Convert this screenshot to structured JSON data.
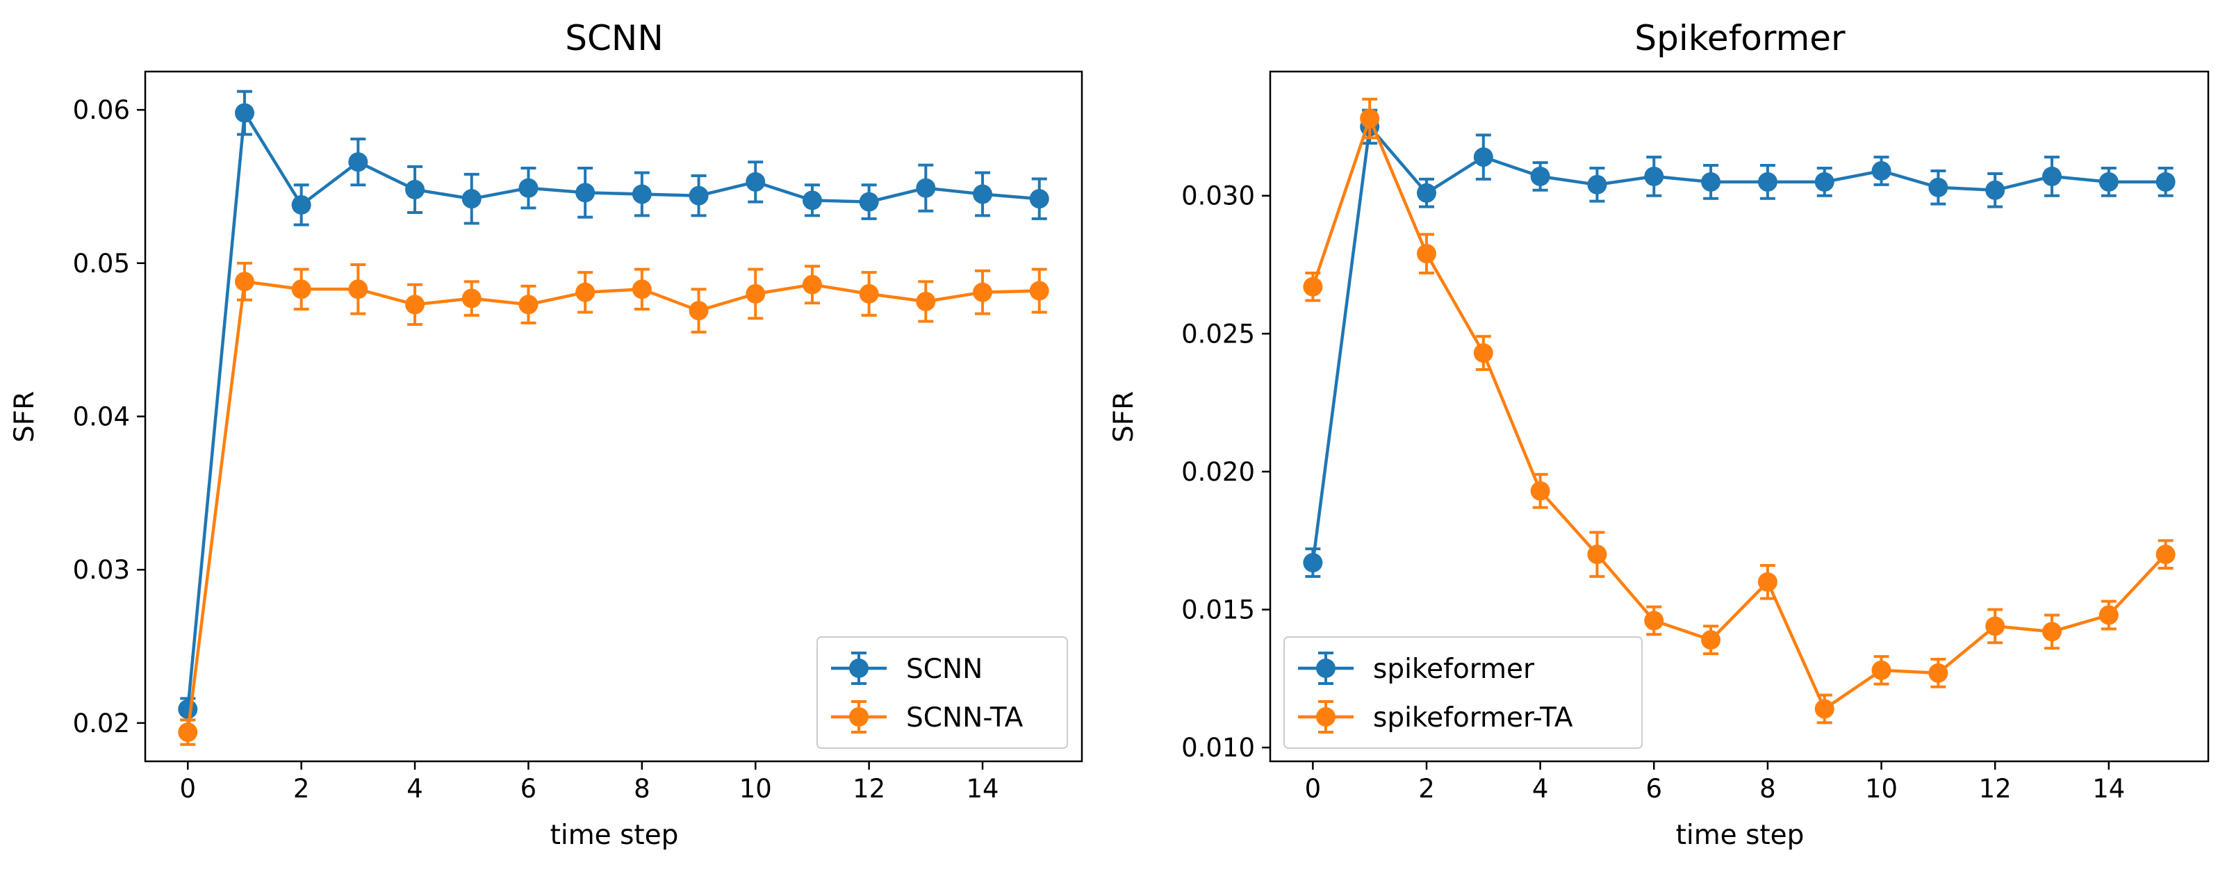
{
  "colors": {
    "blue": "#1f77b4",
    "orange": "#ff7f0e",
    "axis": "#000000",
    "legend_border": "#cccccc"
  },
  "chart_data": [
    {
      "type": "line",
      "title": "SCNN",
      "xlabel": "time step",
      "ylabel": "SFR",
      "xlim": [
        -0.75,
        15.75
      ],
      "ylim": [
        0.0175,
        0.0625
      ],
      "xticks": [
        0,
        2,
        4,
        6,
        8,
        10,
        12,
        14
      ],
      "xtick_labels": [
        "0",
        "2",
        "4",
        "6",
        "8",
        "10",
        "12",
        "14"
      ],
      "yticks": [
        0.02,
        0.03,
        0.04,
        0.05,
        0.06
      ],
      "ytick_labels": [
        "0.02",
        "0.03",
        "0.04",
        "0.05",
        "0.06"
      ],
      "legend_position": "lower-right",
      "x": [
        0,
        1,
        2,
        3,
        4,
        5,
        6,
        7,
        8,
        9,
        10,
        11,
        12,
        13,
        14,
        15
      ],
      "series": [
        {
          "name": "SCNN",
          "color": "blue",
          "values": [
            0.0209,
            0.0598,
            0.0538,
            0.0566,
            0.0548,
            0.0542,
            0.0549,
            0.0546,
            0.0545,
            0.0544,
            0.0553,
            0.0541,
            0.054,
            0.0549,
            0.0545,
            0.0542
          ],
          "errors": [
            0.0007,
            0.0014,
            0.0013,
            0.0015,
            0.0015,
            0.0016,
            0.0013,
            0.0016,
            0.0014,
            0.0013,
            0.0013,
            0.001,
            0.0011,
            0.0015,
            0.0014,
            0.0013
          ]
        },
        {
          "name": "SCNN-TA",
          "color": "orange",
          "values": [
            0.0194,
            0.0488,
            0.0483,
            0.0483,
            0.0473,
            0.0477,
            0.0473,
            0.0481,
            0.0483,
            0.0469,
            0.048,
            0.0486,
            0.048,
            0.0475,
            0.0481,
            0.0482
          ],
          "errors": [
            0.0008,
            0.0012,
            0.0013,
            0.0016,
            0.0013,
            0.0011,
            0.0012,
            0.0013,
            0.0013,
            0.0014,
            0.0016,
            0.0012,
            0.0014,
            0.0013,
            0.0014,
            0.0014
          ]
        }
      ]
    },
    {
      "type": "line",
      "title": "Spikeformer",
      "xlabel": "time step",
      "ylabel": "SFR",
      "xlim": [
        -0.75,
        15.75
      ],
      "ylim": [
        0.0095,
        0.0345
      ],
      "xticks": [
        0,
        2,
        4,
        6,
        8,
        10,
        12,
        14
      ],
      "xtick_labels": [
        "0",
        "2",
        "4",
        "6",
        "8",
        "10",
        "12",
        "14"
      ],
      "yticks": [
        0.01,
        0.015,
        0.02,
        0.025,
        0.03
      ],
      "ytick_labels": [
        "0.010",
        "0.015",
        "0.020",
        "0.025",
        "0.030"
      ],
      "legend_position": "lower-left",
      "x": [
        0,
        1,
        2,
        3,
        4,
        5,
        6,
        7,
        8,
        9,
        10,
        11,
        12,
        13,
        14,
        15
      ],
      "series": [
        {
          "name": "spikeformer",
          "color": "blue",
          "values": [
            0.0167,
            0.0325,
            0.0301,
            0.0314,
            0.0307,
            0.0304,
            0.0307,
            0.0305,
            0.0305,
            0.0305,
            0.0309,
            0.0303,
            0.0302,
            0.0307,
            0.0305,
            0.0305
          ],
          "errors": [
            0.0005,
            0.0006,
            0.0005,
            0.0008,
            0.0005,
            0.0006,
            0.0007,
            0.0006,
            0.0006,
            0.0005,
            0.0005,
            0.0006,
            0.0006,
            0.0007,
            0.0005,
            0.0005
          ]
        },
        {
          "name": "spikeformer-TA",
          "color": "orange",
          "values": [
            0.0267,
            0.0328,
            0.0279,
            0.0243,
            0.0193,
            0.017,
            0.0146,
            0.0139,
            0.016,
            0.0114,
            0.0128,
            0.0127,
            0.0144,
            0.0142,
            0.0148,
            0.017
          ],
          "errors": [
            0.0005,
            0.0007,
            0.0007,
            0.0006,
            0.0006,
            0.0008,
            0.0005,
            0.0005,
            0.0006,
            0.0005,
            0.0005,
            0.0005,
            0.0006,
            0.0006,
            0.0005,
            0.0005
          ]
        }
      ]
    }
  ]
}
